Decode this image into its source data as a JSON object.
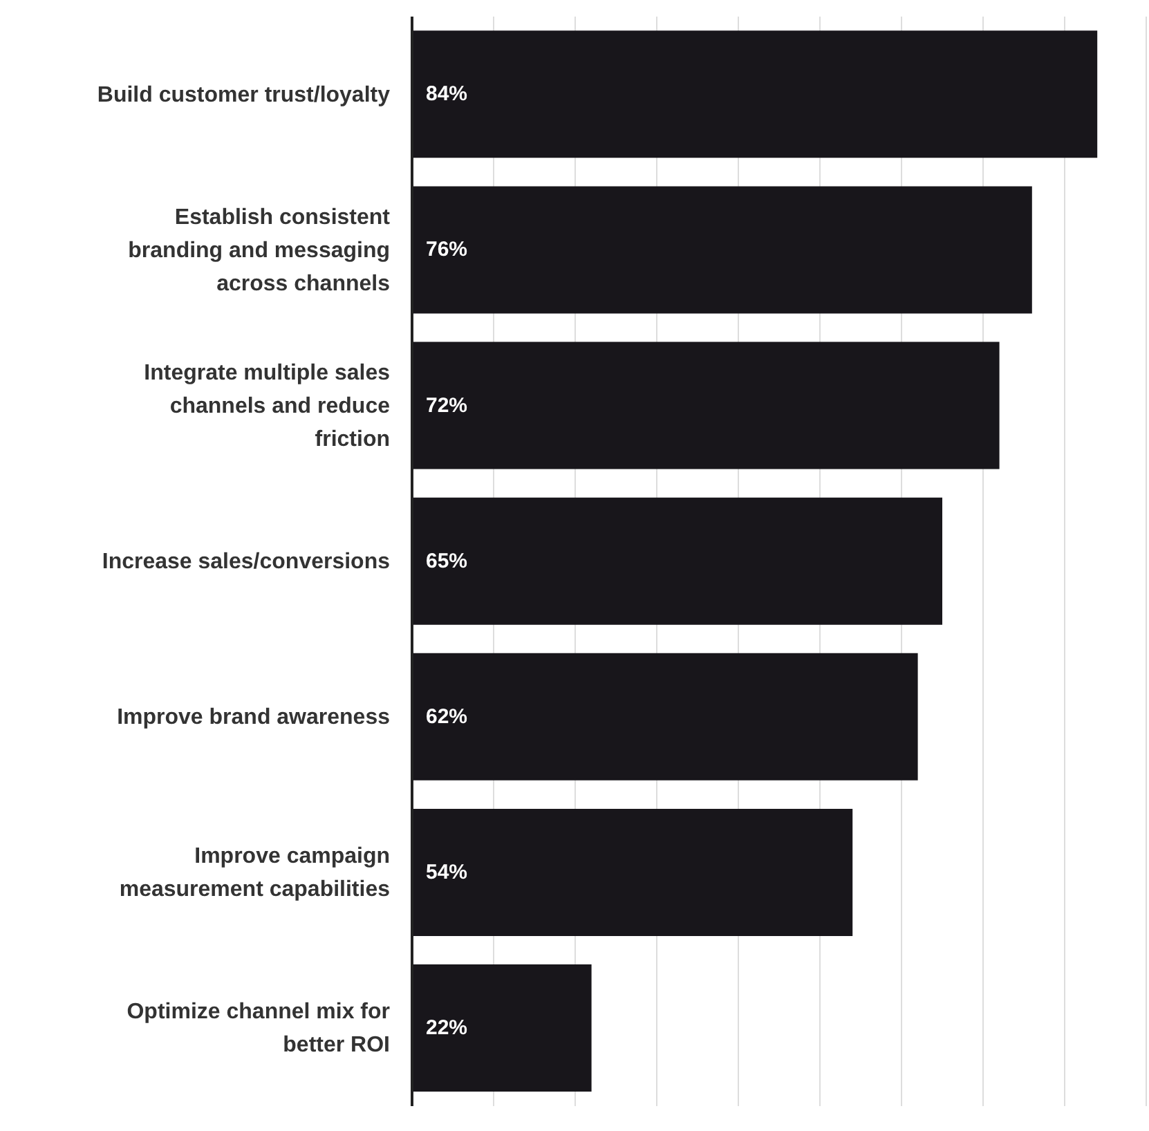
{
  "chart_data": {
    "type": "bar",
    "orientation": "horizontal",
    "categories": [
      "Build customer trust/loyalty",
      "Establish consistent branding and messaging across channels",
      "Integrate multiple sales channels and reduce friction",
      "Increase sales/conversions",
      "Improve brand awareness",
      "Improve campaign measurement capabilities",
      "Optimize channel mix for better ROI"
    ],
    "values": [
      84,
      76,
      72,
      65,
      62,
      54,
      22
    ],
    "value_labels": [
      "84%",
      "76%",
      "72%",
      "65%",
      "62%",
      "54%",
      "22%"
    ],
    "color": "#18161b",
    "xlim": [
      0,
      90
    ],
    "xticks": [
      {
        "value": 0,
        "label": null
      },
      {
        "value": 10,
        "label": null
      },
      {
        "value": 20,
        "label": null
      },
      {
        "value": 30,
        "label": null
      },
      {
        "value": 40,
        "label": null
      },
      {
        "value": 50,
        "label": null
      },
      {
        "value": 60,
        "label": null
      },
      {
        "value": 70,
        "label": null
      },
      {
        "value": 80,
        "label": null
      },
      {
        "value": 90,
        "label": null
      }
    ],
    "tick_labels": "y",
    "grid": "x"
  }
}
